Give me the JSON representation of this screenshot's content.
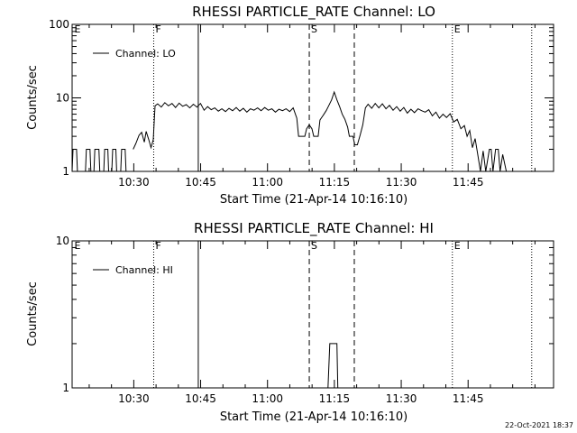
{
  "footer": {
    "timestamp": "22-Oct-2021 18:37"
  },
  "chart_data": [
    {
      "type": "line",
      "title": "RHESSI PARTICLE_RATE Channel: LO",
      "xlabel": "Start Time (21-Apr-14 10:16:10)",
      "ylabel": "Counts/sec",
      "x_unit": "minutes since 10:16:10",
      "yscale": "log",
      "xlim": [
        0,
        108
      ],
      "ylim": [
        1,
        100
      ],
      "x_ticks": [
        {
          "x": 13.83,
          "label": "10:30"
        },
        {
          "x": 28.83,
          "label": "10:45"
        },
        {
          "x": 43.83,
          "label": "11:00"
        },
        {
          "x": 58.83,
          "label": "11:15"
        },
        {
          "x": 73.83,
          "label": "11:30"
        },
        {
          "x": 88.83,
          "label": "11:45"
        }
      ],
      "y_ticks": [
        {
          "y": 1,
          "label": "1"
        },
        {
          "y": 10,
          "label": "10"
        },
        {
          "y": 100,
          "label": "100"
        }
      ],
      "grid": false,
      "legend": {
        "position": "top-left",
        "entries": [
          "Channel: LO"
        ]
      },
      "markers": [
        {
          "x": 0.5,
          "label": "E",
          "style": "none"
        },
        {
          "x": 18.3,
          "label": "F",
          "style": "dotted"
        },
        {
          "x": 28.3,
          "label": "",
          "style": "solid"
        },
        {
          "x": 53.2,
          "label": "S",
          "style": "dashed"
        },
        {
          "x": 63.3,
          "label": "",
          "style": "dashed"
        },
        {
          "x": 85.3,
          "label": "E",
          "style": "dotted"
        },
        {
          "x": 103.1,
          "label": "",
          "style": "dotted"
        }
      ],
      "series": [
        {
          "name": "Channel: LO",
          "segments": [
            [
              [
                0,
                1
              ],
              [
                0.2,
                2
              ],
              [
                1,
                2
              ],
              [
                1.2,
                1
              ],
              [
                3,
                1
              ],
              [
                3.2,
                2
              ],
              [
                4,
                2
              ],
              [
                4.2,
                1
              ],
              [
                4.9,
                1
              ],
              [
                5.1,
                2
              ],
              [
                6,
                2
              ],
              [
                6.2,
                1
              ],
              [
                7.1,
                1
              ],
              [
                7.3,
                2
              ],
              [
                8,
                2
              ],
              [
                8.2,
                1
              ],
              [
                8.9,
                1
              ],
              [
                9.1,
                2
              ],
              [
                9.8,
                2
              ],
              [
                10,
                1
              ],
              [
                10.9,
                1
              ],
              [
                11.1,
                2
              ],
              [
                11.9,
                2
              ],
              [
                12.1,
                1
              ]
            ],
            [
              [
                13.7,
                2
              ],
              [
                14.3,
                2.4
              ],
              [
                15,
                3.1
              ],
              [
                15.6,
                3.4
              ],
              [
                16.2,
                2.5
              ],
              [
                16.6,
                3.5
              ],
              [
                17.2,
                2.7
              ],
              [
                17.7,
                2.1
              ],
              [
                18.2,
                2.7
              ],
              [
                18.6,
                7.8
              ],
              [
                19.2,
                8.3
              ],
              [
                20,
                7.5
              ],
              [
                20.8,
                8.6
              ],
              [
                21.6,
                7.8
              ],
              [
                22.4,
                8.4
              ],
              [
                23.2,
                7.4
              ],
              [
                24,
                8.5
              ],
              [
                24.8,
                7.7
              ],
              [
                25.6,
                8.1
              ],
              [
                26.4,
                7.3
              ],
              [
                27.2,
                8.2
              ],
              [
                28,
                7.5
              ],
              [
                28.8,
                8.4
              ],
              [
                29.6,
                6.8
              ],
              [
                30.4,
                7.6
              ],
              [
                31.2,
                6.9
              ],
              [
                32,
                7.3
              ],
              [
                32.8,
                6.6
              ],
              [
                33.6,
                7.1
              ],
              [
                34.4,
                6.5
              ],
              [
                35.2,
                7.2
              ],
              [
                36,
                6.7
              ],
              [
                36.8,
                7.4
              ],
              [
                37.6,
                6.6
              ],
              [
                38.4,
                7.2
              ],
              [
                39.2,
                6.4
              ],
              [
                40,
                7.1
              ],
              [
                40.8,
                6.8
              ],
              [
                41.6,
                7.3
              ],
              [
                42.4,
                6.7
              ],
              [
                43.2,
                7.4
              ],
              [
                44,
                6.8
              ],
              [
                44.8,
                7.1
              ],
              [
                45.6,
                6.4
              ],
              [
                46.4,
                7
              ],
              [
                47.2,
                6.7
              ],
              [
                48,
                7.1
              ],
              [
                48.8,
                6.5
              ],
              [
                49.6,
                7.3
              ],
              [
                50.4,
                5.3
              ],
              [
                50.8,
                3
              ],
              [
                52.2,
                3
              ],
              [
                52.6,
                3.8
              ],
              [
                53.2,
                4.3
              ],
              [
                53.8,
                3.8
              ],
              [
                54.2,
                3
              ],
              [
                55.2,
                3
              ],
              [
                55.6,
                5
              ],
              [
                56.4,
                5.9
              ],
              [
                57,
                6.7
              ],
              [
                57.6,
                7.9
              ],
              [
                58.2,
                9.4
              ],
              [
                58.8,
                12
              ],
              [
                59.4,
                9.4
              ],
              [
                60,
                7.6
              ],
              [
                60.6,
                6
              ],
              [
                61.2,
                5.1
              ],
              [
                61.8,
                4
              ],
              [
                62.2,
                3
              ],
              [
                63,
                3
              ],
              [
                63.4,
                2.3
              ],
              [
                64,
                2.3
              ],
              [
                64.6,
                3.1
              ],
              [
                65.2,
                4.3
              ],
              [
                65.8,
                7.3
              ],
              [
                66.4,
                8.2
              ],
              [
                67.2,
                7.2
              ],
              [
                68,
                8.4
              ],
              [
                68.8,
                7.3
              ],
              [
                69.6,
                8.3
              ],
              [
                70.4,
                7.1
              ],
              [
                71.2,
                7.9
              ],
              [
                72,
                6.8
              ],
              [
                72.8,
                7.6
              ],
              [
                73.6,
                6.6
              ],
              [
                74.4,
                7.4
              ],
              [
                75.2,
                6.2
              ],
              [
                76,
                7
              ],
              [
                76.8,
                6.3
              ],
              [
                77.6,
                7.1
              ],
              [
                78.4,
                6.7
              ],
              [
                79.2,
                6.4
              ],
              [
                80,
                6.9
              ],
              [
                80.8,
                5.7
              ],
              [
                81.6,
                6.4
              ],
              [
                82.4,
                5.3
              ],
              [
                83.2,
                6
              ],
              [
                84,
                5.4
              ],
              [
                84.8,
                6.1
              ],
              [
                85.6,
                4.7
              ],
              [
                86.4,
                5.1
              ],
              [
                87.2,
                3.8
              ],
              [
                88,
                4.2
              ],
              [
                88.6,
                3
              ],
              [
                89.2,
                3.6
              ],
              [
                89.8,
                2.1
              ],
              [
                90.4,
                2.8
              ],
              [
                91,
                1.7
              ],
              [
                91.6,
                1
              ],
              [
                92.2,
                1.9
              ],
              [
                92.8,
                1
              ],
              [
                93.6,
                2
              ],
              [
                94,
                2
              ],
              [
                94.4,
                1
              ],
              [
                95,
                2
              ],
              [
                95.6,
                2
              ],
              [
                96,
                1
              ],
              [
                96.6,
                1.7
              ],
              [
                97.4,
                1
              ]
            ]
          ]
        }
      ]
    },
    {
      "type": "line",
      "title": "RHESSI PARTICLE_RATE Channel: HI",
      "xlabel": "Start Time (21-Apr-14 10:16:10)",
      "ylabel": "Counts/sec",
      "x_unit": "minutes since 10:16:10",
      "yscale": "log",
      "xlim": [
        0,
        108
      ],
      "ylim": [
        1,
        10
      ],
      "x_ticks": [
        {
          "x": 13.83,
          "label": "10:30"
        },
        {
          "x": 28.83,
          "label": "10:45"
        },
        {
          "x": 43.83,
          "label": "11:00"
        },
        {
          "x": 58.83,
          "label": "11:15"
        },
        {
          "x": 73.83,
          "label": "11:30"
        },
        {
          "x": 88.83,
          "label": "11:45"
        }
      ],
      "y_ticks": [
        {
          "y": 1,
          "label": "1"
        },
        {
          "y": 10,
          "label": "10"
        }
      ],
      "grid": false,
      "legend": {
        "position": "top-left",
        "entries": [
          "Channel: HI"
        ]
      },
      "markers": [
        {
          "x": 0.5,
          "label": "E",
          "style": "none"
        },
        {
          "x": 18.3,
          "label": "F",
          "style": "dotted"
        },
        {
          "x": 28.3,
          "label": "",
          "style": "solid"
        },
        {
          "x": 53.2,
          "label": "S",
          "style": "dashed"
        },
        {
          "x": 63.3,
          "label": "",
          "style": "dashed"
        },
        {
          "x": 85.3,
          "label": "E",
          "style": "dotted"
        },
        {
          "x": 103.1,
          "label": "",
          "style": "dotted"
        }
      ],
      "series": [
        {
          "name": "Channel: HI",
          "segments": [
            [
              [
                57.4,
                1
              ],
              [
                57.8,
                2
              ],
              [
                59.4,
                2
              ],
              [
                59.6,
                1
              ],
              [
                59.8,
                1
              ]
            ]
          ]
        }
      ]
    }
  ]
}
